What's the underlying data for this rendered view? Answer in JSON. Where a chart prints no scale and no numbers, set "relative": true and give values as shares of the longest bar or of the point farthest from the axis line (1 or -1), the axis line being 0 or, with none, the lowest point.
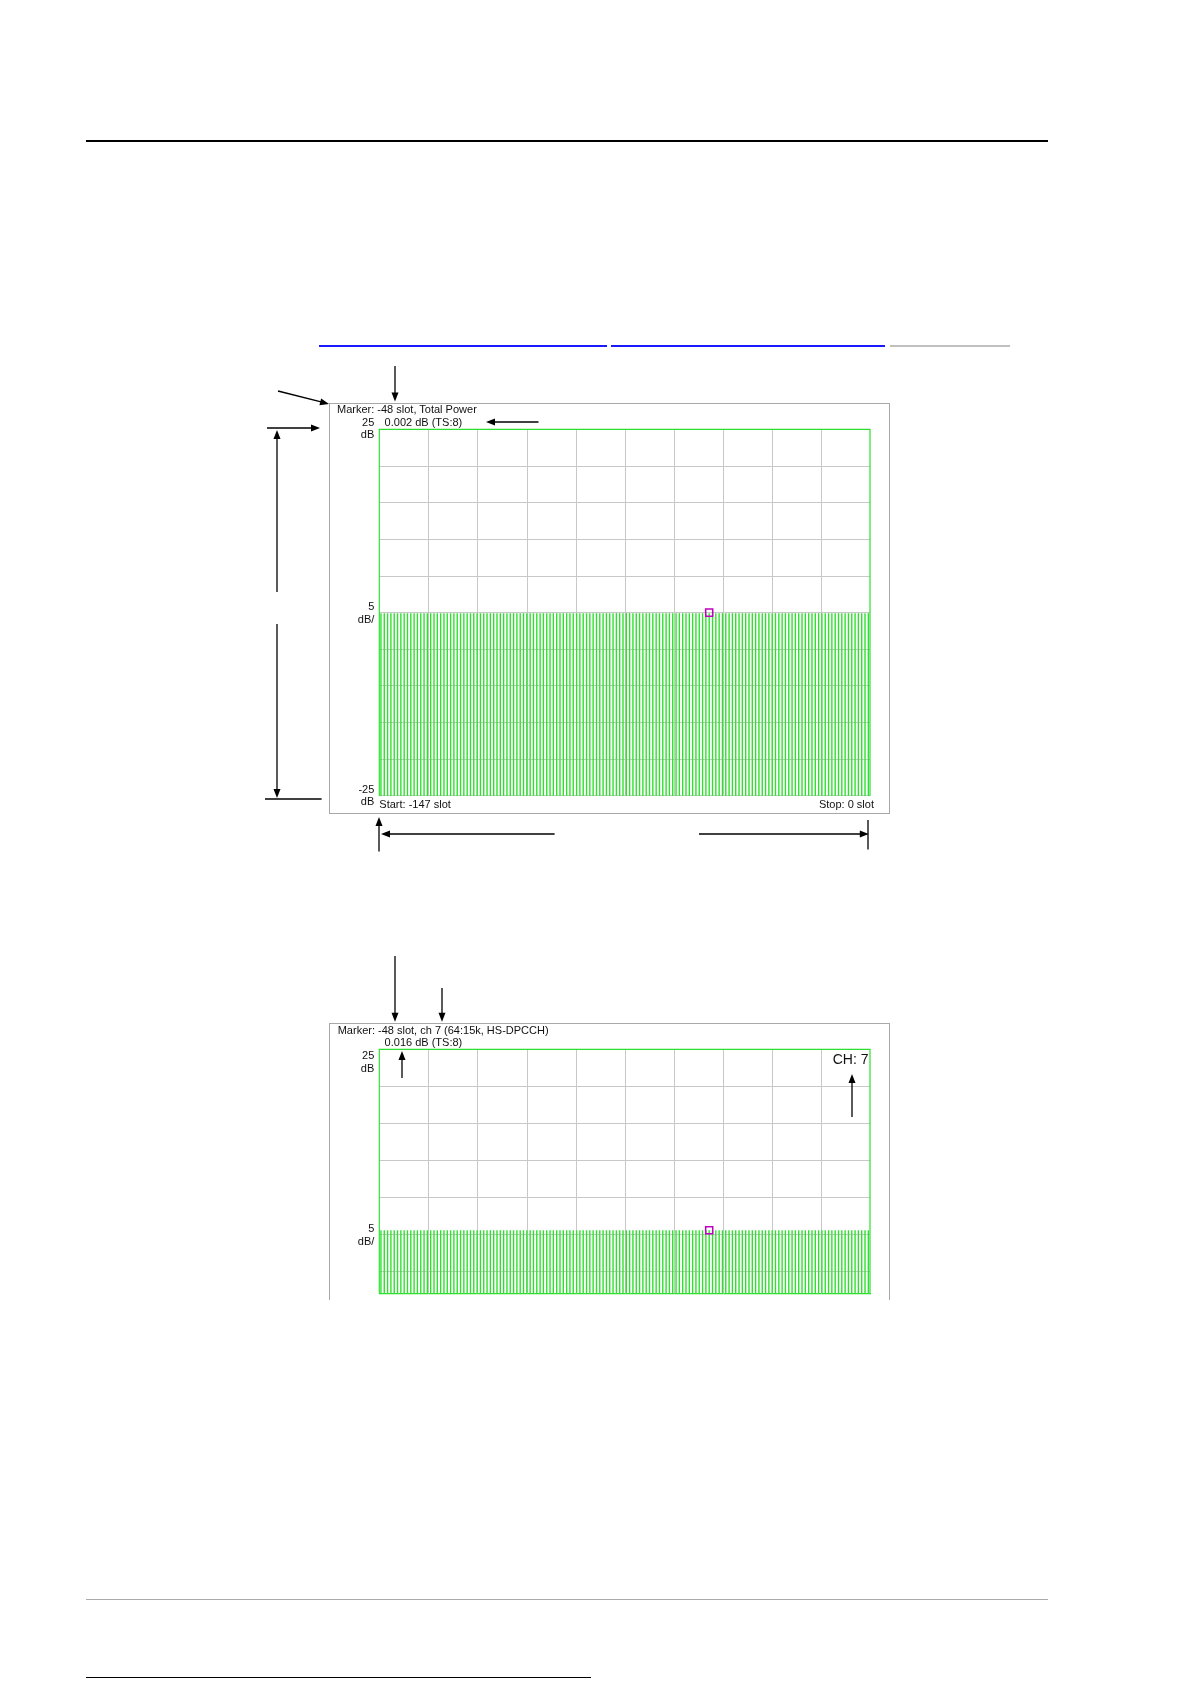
{
  "chart_data": [
    {
      "type": "bar",
      "categories": [
        null,
        null,
        null,
        null,
        null,
        null,
        null,
        null,
        null,
        null,
        null,
        null,
        null,
        null,
        null,
        null,
        null,
        null,
        null,
        null,
        null,
        null,
        null,
        null,
        null,
        null,
        null,
        null,
        null,
        null,
        null,
        null,
        null,
        null,
        null,
        null,
        null,
        null,
        null,
        null,
        null,
        null,
        null,
        null,
        null,
        null,
        null,
        null,
        null,
        null,
        null,
        null,
        null,
        null,
        null,
        null,
        null,
        null,
        null,
        null,
        null,
        null,
        null,
        null,
        null,
        null,
        null,
        null,
        null,
        null,
        null,
        null,
        null,
        null,
        null,
        null,
        null,
        null,
        null,
        null,
        null,
        null,
        null,
        null,
        null,
        null,
        null,
        null,
        null,
        null,
        null,
        null,
        null,
        null,
        null,
        null,
        null,
        null,
        null,
        null,
        null,
        null,
        null,
        null,
        null,
        null,
        null,
        null,
        null,
        null,
        null,
        null,
        null,
        null,
        null,
        null,
        null,
        null,
        null,
        null,
        null,
        null,
        null,
        null,
        null,
        null,
        null,
        null,
        null,
        null,
        null,
        null,
        null,
        null,
        null,
        null,
        null,
        null,
        null,
        null,
        null,
        null,
        null,
        null,
        null,
        null,
        null,
        null
      ],
      "series": [
        {
          "color": "#2ee02e",
          "base": [
            -25,
            -25,
            -25,
            -25,
            -25,
            -25,
            -25,
            -25,
            -25,
            -25,
            -25,
            -25,
            -25,
            -25,
            -25,
            -25,
            -25,
            -25,
            -25,
            -25,
            -25,
            -25,
            -25,
            -25,
            -25,
            -25,
            -25,
            -25,
            -25,
            -25,
            -25,
            -25,
            -25,
            -25,
            -25,
            -25,
            -25,
            -25,
            -25,
            -25,
            -25,
            -25,
            -25,
            -25,
            -25,
            -25,
            -25,
            -25,
            -25,
            -25,
            -25,
            -25,
            -25,
            -25,
            -25,
            -25,
            -25,
            -25,
            -25,
            -25,
            -25,
            -25,
            -25,
            -25,
            -25,
            -25,
            -25,
            -25,
            -25,
            -25,
            -25,
            -25,
            -25,
            -25,
            -25,
            -25,
            -25,
            -25,
            -25,
            -25,
            -25,
            -25,
            -25,
            -25,
            -25,
            -25,
            -25,
            -25,
            -25,
            -25,
            -25,
            -25,
            -25,
            -25,
            -25,
            -25,
            -25,
            -25,
            -25,
            -25,
            -25,
            -25,
            -25,
            -25,
            -25,
            -25,
            -25,
            -25,
            -25,
            -25,
            -25,
            -25,
            -25,
            -25,
            -25,
            -25,
            -25,
            -25,
            -25,
            -25,
            -25,
            -25,
            -25,
            -25,
            -25,
            -25,
            -25,
            -25,
            -25,
            -25,
            -25,
            -25,
            -25,
            -25,
            -25,
            -25,
            -25,
            -25,
            -25,
            -25,
            -25,
            -25,
            -25,
            -25,
            -25,
            -25,
            -25,
            -25
          ],
          "values": [
            25,
            25,
            25,
            25,
            25,
            25,
            25,
            25,
            25,
            25,
            25,
            25,
            25,
            25,
            25,
            25,
            25,
            25,
            25,
            25,
            25,
            25,
            25,
            25,
            25,
            25,
            25,
            25,
            25,
            25,
            25,
            25,
            25,
            25,
            25,
            25,
            25,
            25,
            25,
            25,
            25,
            25,
            25,
            25,
            25,
            25,
            25,
            25,
            25,
            25,
            25,
            25,
            25,
            25,
            25,
            25,
            25,
            25,
            25,
            25,
            25,
            25,
            25,
            25,
            25,
            25,
            25,
            25,
            25,
            25,
            25,
            25,
            25,
            25,
            25,
            25,
            25,
            25,
            25,
            25,
            25,
            25,
            25,
            25,
            25,
            25,
            25,
            25,
            25,
            25,
            25,
            25,
            25,
            25,
            25,
            25,
            25,
            25,
            25,
            25,
            25,
            25,
            25,
            25,
            25,
            25,
            25,
            25,
            25,
            25,
            25,
            25,
            25,
            25,
            25,
            25,
            25,
            25,
            25,
            25,
            25,
            25,
            25,
            25,
            25,
            25,
            25,
            25,
            25,
            25,
            25,
            25,
            25,
            25,
            25,
            25,
            25,
            25,
            25,
            25,
            25,
            25,
            25,
            25,
            25,
            25,
            25,
            25
          ]
        },
        {
          "type": "scatter",
          "color": "#c000c0",
          "marker": "square",
          "values": [
            null,
            null,
            null,
            null,
            null,
            null,
            null,
            null,
            null,
            null,
            null,
            null,
            null,
            null,
            null,
            null,
            null,
            null,
            null,
            null,
            null,
            null,
            null,
            null,
            null,
            null,
            null,
            null,
            null,
            null,
            null,
            null,
            null,
            null,
            null,
            null,
            null,
            null,
            null,
            null,
            null,
            null,
            null,
            null,
            null,
            null,
            null,
            null,
            null,
            null,
            null,
            null,
            null,
            null,
            null,
            null,
            null,
            null,
            null,
            null,
            null,
            null,
            null,
            null,
            null,
            null,
            null,
            null,
            null,
            null,
            null,
            null,
            null,
            null,
            null,
            null,
            null,
            null,
            null,
            null,
            null,
            null,
            null,
            null,
            null,
            null,
            null,
            null,
            null,
            null,
            null,
            null,
            null,
            null,
            null,
            null,
            null,
            null,
            null,
            0.002,
            null,
            null,
            null,
            null,
            null,
            null,
            null,
            null,
            null,
            null,
            null,
            null,
            null,
            null,
            null,
            null,
            null,
            null,
            null,
            null,
            null,
            null,
            null,
            null,
            null,
            null,
            null,
            null,
            null,
            null,
            null,
            null,
            null,
            null,
            null,
            null,
            null,
            null,
            null,
            null,
            null,
            null,
            null,
            null,
            null,
            null,
            null,
            null
          ]
        }
      ],
      "ylim": [
        -25,
        25
      ],
      "yticks": [
        {
          "value": 25,
          "label": "25 dB"
        },
        {
          "value": 20,
          "label": null
        },
        {
          "value": 15,
          "label": null
        },
        {
          "value": 10,
          "label": null
        },
        {
          "value": 5,
          "label": null
        },
        {
          "value": 0,
          "label": null
        },
        {
          "value": -5,
          "label": null
        },
        {
          "value": -10,
          "label": null
        },
        {
          "value": -15,
          "label": null
        },
        {
          "value": -20,
          "label": null
        },
        {
          "value": -25,
          "label": "-25 dB"
        }
      ],
      "ylabel": "5 dB/",
      "grid": true,
      "tick_labels": "y",
      "annotations": [
        "Marker: -48 slot, Total Power",
        "0.002 dB (TS:8)",
        "Start: -147 slot",
        "Stop: 0 slot"
      ]
    },
    {
      "type": "bar",
      "relative": true,
      "categories": [
        null,
        null,
        null,
        null,
        null,
        null,
        null,
        null,
        null,
        null,
        null,
        null,
        null,
        null,
        null,
        null,
        null,
        null,
        null,
        null,
        null,
        null,
        null,
        null,
        null,
        null,
        null,
        null,
        null,
        null,
        null,
        null,
        null,
        null,
        null,
        null,
        null,
        null,
        null,
        null,
        null,
        null,
        null,
        null,
        null,
        null,
        null,
        null,
        null,
        null,
        null,
        null,
        null,
        null,
        null,
        null,
        null,
        null,
        null,
        null,
        null,
        null,
        null,
        null,
        null,
        null,
        null,
        null,
        null,
        null,
        null,
        null,
        null,
        null,
        null,
        null,
        null,
        null,
        null,
        null,
        null,
        null,
        null,
        null,
        null,
        null,
        null,
        null,
        null,
        null,
        null,
        null,
        null,
        null,
        null,
        null,
        null,
        null,
        null,
        null,
        null,
        null,
        null,
        null,
        null,
        null,
        null,
        null,
        null,
        null,
        null,
        null,
        null,
        null,
        null,
        null,
        null,
        null,
        null,
        null,
        null,
        null,
        null,
        null,
        null,
        null,
        null,
        null,
        null,
        null,
        null,
        null,
        null,
        null,
        null,
        null,
        null,
        null,
        null,
        null,
        null,
        null,
        null,
        null,
        null,
        null,
        null,
        null
      ],
      "series": [
        {
          "color": "#2ee02e",
          "values": [
            1,
            1,
            1,
            1,
            1,
            1,
            1,
            1,
            1,
            1,
            1,
            1,
            1,
            1,
            1,
            1,
            1,
            1,
            1,
            1,
            1,
            1,
            1,
            1,
            1,
            1,
            1,
            1,
            1,
            1,
            1,
            1,
            1,
            1,
            1,
            1,
            1,
            1,
            1,
            1,
            1,
            1,
            1,
            1,
            1,
            1,
            1,
            1,
            1,
            1,
            1,
            1,
            1,
            1,
            1,
            1,
            1,
            1,
            1,
            1,
            1,
            1,
            1,
            1,
            1,
            1,
            1,
            1,
            1,
            1,
            1,
            1,
            1,
            1,
            1,
            1,
            1,
            1,
            1,
            1,
            1,
            1,
            1,
            1,
            1,
            1,
            1,
            1,
            1,
            1,
            1,
            1,
            1,
            1,
            1,
            1,
            1,
            1,
            1,
            1,
            1,
            1,
            1,
            1,
            1,
            1,
            1,
            1,
            1,
            1,
            1,
            1,
            1,
            1,
            1,
            1,
            1,
            1,
            1,
            1,
            1,
            1,
            1,
            1,
            1,
            1,
            1,
            1,
            1,
            1,
            1,
            1,
            1,
            1,
            1,
            1,
            1,
            1,
            1,
            1,
            1,
            1,
            1,
            1,
            1,
            1,
            1,
            1
          ]
        },
        {
          "type": "scatter",
          "color": "#c000c0",
          "marker": "square",
          "values": [
            null,
            null,
            null,
            null,
            null,
            null,
            null,
            null,
            null,
            null,
            null,
            null,
            null,
            null,
            null,
            null,
            null,
            null,
            null,
            null,
            null,
            null,
            null,
            null,
            null,
            null,
            null,
            null,
            null,
            null,
            null,
            null,
            null,
            null,
            null,
            null,
            null,
            null,
            null,
            null,
            null,
            null,
            null,
            null,
            null,
            null,
            null,
            null,
            null,
            null,
            null,
            null,
            null,
            null,
            null,
            null,
            null,
            null,
            null,
            null,
            null,
            null,
            null,
            null,
            null,
            null,
            null,
            null,
            null,
            null,
            null,
            null,
            null,
            null,
            null,
            null,
            null,
            null,
            null,
            null,
            null,
            null,
            null,
            null,
            null,
            null,
            null,
            null,
            null,
            null,
            null,
            null,
            null,
            null,
            null,
            null,
            null,
            null,
            null,
            1,
            null,
            null,
            null,
            null,
            null,
            null,
            null,
            null,
            null,
            null,
            null,
            null,
            null,
            null,
            null,
            null,
            null,
            null,
            null,
            null,
            null,
            null,
            null,
            null,
            null,
            null,
            null,
            null,
            null,
            null,
            null,
            null,
            null,
            null,
            null,
            null,
            null,
            null,
            null,
            null,
            null,
            null,
            null,
            null,
            null,
            null,
            null,
            null
          ]
        }
      ],
      "ylabel": "5 dB/",
      "grid": true,
      "tick_labels": false,
      "annotations": [
        "Marker: -48 slot, ch 7 (64:15k, HS-DPCCH)",
        "0.016 dB (TS:8)",
        "25 dB",
        "CH: 7"
      ]
    }
  ]
}
